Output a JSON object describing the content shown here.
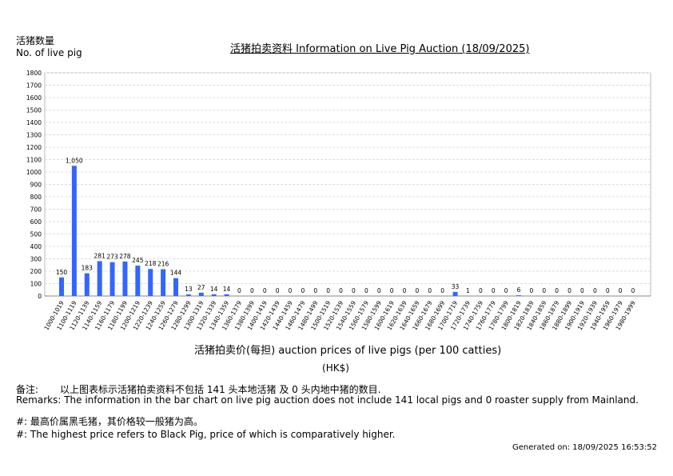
{
  "header": {
    "ylabel_cn": "活猪数量",
    "ylabel_en": "No. of live pig",
    "title": "活猪拍卖资料 Information on Live Pig Auction (18/09/2025)"
  },
  "chart_data": {
    "type": "bar",
    "title": "活猪拍卖资料 Information on Live Pig Auction (18/09/2025)",
    "ylabel": "活猪数量 No. of live pig",
    "xlabel": "活猪拍卖价(每担) auction prices of live pigs (per 100 catties)",
    "xlabel_unit": "(HK$)",
    "ylim": [
      0,
      1800
    ],
    "yticks": [
      0,
      100,
      200,
      300,
      400,
      500,
      600,
      700,
      800,
      900,
      1000,
      1100,
      1200,
      1300,
      1400,
      1500,
      1600,
      1700,
      1800
    ],
    "grid": true,
    "bar_color": "#3366ff",
    "categories": [
      "1000-1019",
      "1100-1119",
      "1120-1139",
      "1140-1159",
      "1160-1179",
      "1180-1199",
      "1200-1219",
      "1220-1239",
      "1240-1259",
      "1260-1279",
      "1280-1299",
      "1300-1319",
      "1320-1339",
      "1340-1359",
      "1360-1379",
      "1380-1399",
      "1400-1419",
      "1420-1439",
      "1440-1459",
      "1460-1479",
      "1480-1499",
      "1500-1519",
      "1520-1539",
      "1540-1559",
      "1560-1579",
      "1580-1599",
      "1600-1619",
      "1620-1639",
      "1640-1659",
      "1660-1679",
      "1680-1699",
      "1700-1719",
      "1720-1739",
      "1740-1759",
      "1760-1779",
      "1780-1799",
      "1800-1819",
      "1820-1839",
      "1840-1859",
      "1860-1879",
      "1880-1899",
      "1900-1919",
      "1920-1939",
      "1940-1959",
      "1960-1979",
      "1980-1999"
    ],
    "values": [
      150,
      1050,
      183,
      281,
      273,
      278,
      245,
      218,
      216,
      144,
      13,
      27,
      14,
      14,
      0,
      0,
      0,
      0,
      0,
      0,
      0,
      0,
      0,
      0,
      0,
      0,
      0,
      0,
      0,
      0,
      0,
      33,
      1,
      0,
      0,
      0,
      6,
      0,
      0,
      0,
      0,
      0,
      0,
      0,
      0,
      0
    ]
  },
  "footer": {
    "remarks_cn_label": "备注:",
    "remarks_cn": "以上图表标示活猪拍卖资料不包括 141 头本地活猪 及 0 头内地中猪的数目.",
    "remarks_en": "Remarks: The information in the bar chart on live pig auction does not include 141  local pigs and 0 roaster supply from Mainland.",
    "note_cn": "#: 最高价属黑毛猪，其价格较一般猪为高。",
    "note_en": "#: The highest price refers to Black Pig, price of which is comparatively higher.",
    "generated": "Generated on: 18/09/2025 16:53:52"
  }
}
